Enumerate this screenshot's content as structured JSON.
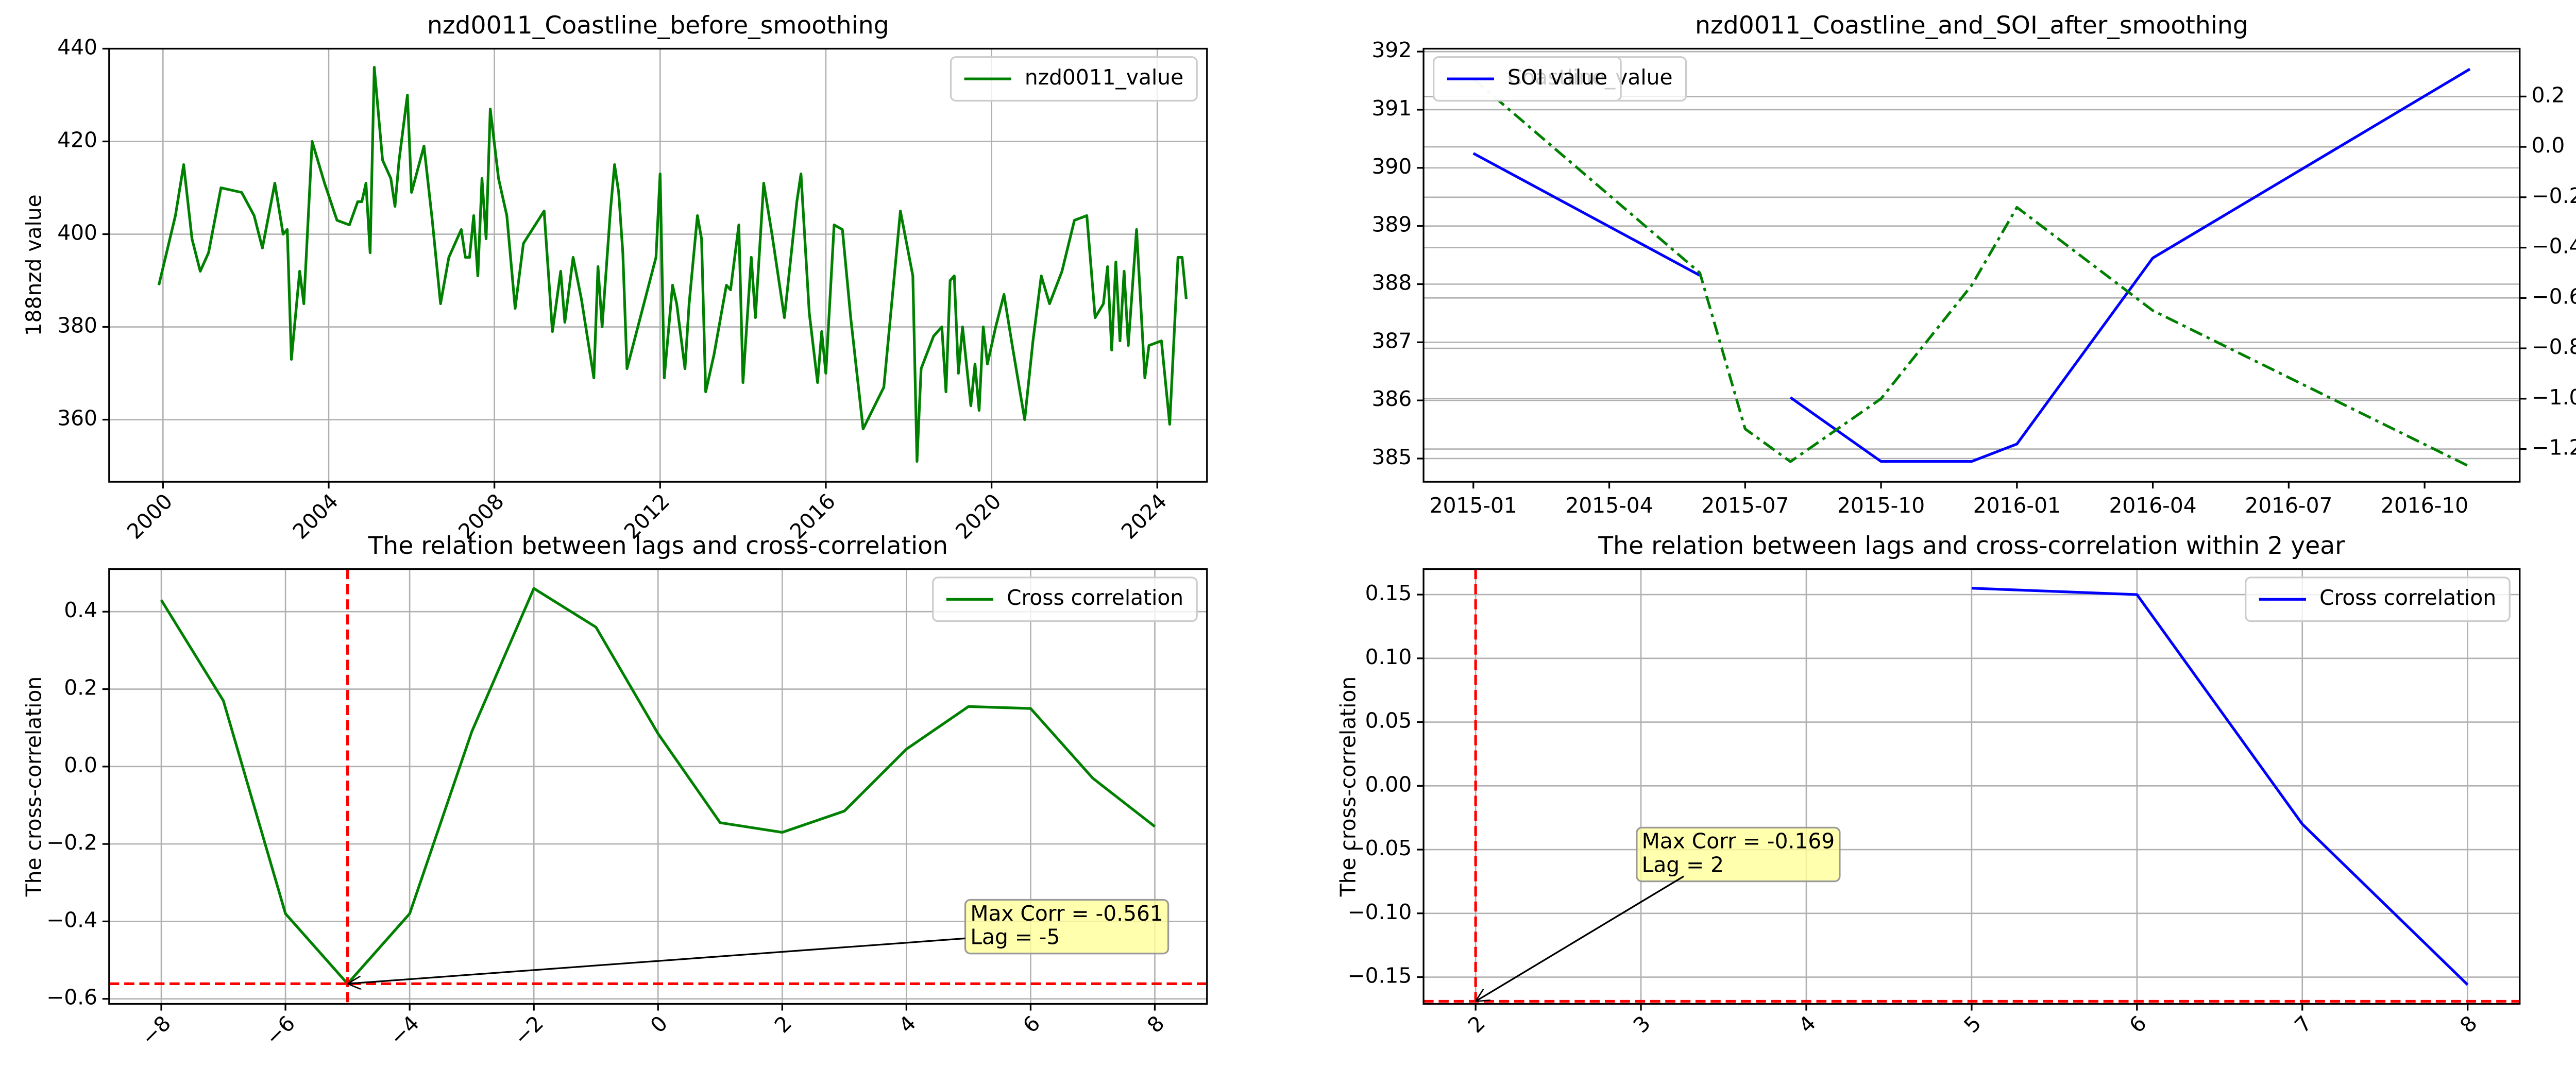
{
  "chart_data": [
    {
      "type": "line",
      "title": "nzd0011_Coastline_before_smoothing",
      "ylabel": "188nzd value",
      "x": [
        1999.9,
        2000.3,
        2000.5,
        2000.7,
        2000.9,
        2001.1,
        2001.4,
        2001.9,
        2002.2,
        2002.4,
        2002.7,
        2002.9,
        2003.0,
        2003.1,
        2003.3,
        2003.4,
        2003.6,
        2003.9,
        2004.2,
        2004.5,
        2004.7,
        2004.8,
        2004.9,
        2005.0,
        2005.1,
        2005.3,
        2005.5,
        2005.6,
        2005.7,
        2005.9,
        2006.0,
        2006.3,
        2006.5,
        2006.7,
        2006.9,
        2007.2,
        2007.3,
        2007.4,
        2007.5,
        2007.6,
        2007.7,
        2007.8,
        2007.9,
        2008.1,
        2008.3,
        2008.5,
        2008.7,
        2009.2,
        2009.4,
        2009.6,
        2009.7,
        2009.9,
        2010.1,
        2010.4,
        2010.5,
        2010.6,
        2010.8,
        2010.9,
        2011.0,
        2011.1,
        2011.2,
        2011.9,
        2012.0,
        2012.1,
        2012.3,
        2012.4,
        2012.6,
        2012.7,
        2012.9,
        2013.0,
        2013.1,
        2013.3,
        2013.6,
        2013.7,
        2013.9,
        2014.0,
        2014.2,
        2014.3,
        2014.5,
        2014.7,
        2015.0,
        2015.3,
        2015.4,
        2015.6,
        2015.8,
        2015.9,
        2016.0,
        2016.2,
        2016.4,
        2016.6,
        2016.9,
        2017.4,
        2017.6,
        2017.8,
        2018.1,
        2018.2,
        2018.3,
        2018.6,
        2018.8,
        2018.9,
        2019.0,
        2019.1,
        2019.2,
        2019.3,
        2019.5,
        2019.6,
        2019.7,
        2019.8,
        2019.9,
        2020.1,
        2020.3,
        2020.5,
        2020.8,
        2021.0,
        2021.2,
        2021.4,
        2021.7,
        2022.0,
        2022.3,
        2022.5,
        2022.7,
        2022.8,
        2022.9,
        2023.0,
        2023.1,
        2023.2,
        2023.3,
        2023.5,
        2023.7,
        2023.8,
        2024.1,
        2024.3,
        2024.5,
        2024.6,
        2024.7
      ],
      "series": [
        {
          "name": "nzd0011_value",
          "color": "#008000",
          "values": [
            389,
            404,
            415,
            399,
            392,
            396,
            410,
            409,
            404,
            397,
            411,
            400,
            401,
            373,
            392,
            385,
            420,
            411,
            403,
            402,
            407,
            407,
            411,
            396,
            436,
            416,
            412,
            406,
            416,
            430,
            409,
            419,
            403,
            385,
            395,
            401,
            395,
            395,
            404,
            391,
            412,
            399,
            427,
            412,
            404,
            384,
            398,
            405,
            379,
            392,
            381,
            395,
            386,
            369,
            393,
            380,
            405,
            415,
            409,
            396,
            371,
            395,
            413,
            369,
            389,
            385,
            371,
            385,
            404,
            399,
            366,
            374,
            389,
            388,
            402,
            368,
            395,
            382,
            411,
            400,
            382,
            407,
            413,
            383,
            368,
            379,
            370,
            402,
            401,
            382,
            358,
            367,
            386,
            405,
            391,
            351,
            371,
            378,
            380,
            366,
            390,
            391,
            370,
            380,
            363,
            372,
            362,
            380,
            372,
            380,
            387,
            376,
            360,
            377,
            391,
            385,
            392,
            403,
            404,
            382,
            385,
            393,
            375,
            394,
            377,
            392,
            376,
            401,
            369,
            376,
            377,
            359,
            395,
            395,
            386
          ]
        }
      ],
      "xlim": [
        1998.7,
        2025.2
      ],
      "xticks": [
        2000,
        2004,
        2008,
        2012,
        2016,
        2020,
        2024
      ],
      "ylim": [
        346.6,
        440
      ],
      "yticks": [
        360,
        380,
        400,
        420,
        440
      ],
      "grid": "both",
      "legend": "upper right"
    },
    {
      "type": "line",
      "title": "nzd0011_Coastline_and_SOI_after_smoothing",
      "y2label": "SOI value",
      "x": [
        "2015-01",
        "2015-06",
        "2015-07",
        "2015-08",
        "2015-10",
        "2015-12",
        "2016-01",
        "2016-04",
        "2016-11"
      ],
      "series": [
        {
          "name": "SOI value",
          "color": "#0000ff",
          "values": [
            390.25,
            388.15,
            null,
            386.05,
            384.95,
            384.95,
            385.25,
            388.45,
            391.7
          ]
        },
        {
          "name": "Coastline_value",
          "color": "#008000",
          "linestyle": "dashdot",
          "axis": "y2",
          "values": [
            0.27,
            -0.5,
            -1.12,
            -1.25,
            -1.0,
            -0.55,
            -0.24,
            -0.65,
            -1.27
          ]
        }
      ],
      "xticks": [
        "2015-01",
        "2015-04",
        "2015-07",
        "2015-10",
        "2016-01",
        "2016-04",
        "2016-07",
        "2016-10"
      ],
      "ylim": [
        384.6,
        392.05
      ],
      "yticks": [
        385,
        386,
        387,
        388,
        389,
        390,
        391,
        392
      ],
      "y2lim": [
        -1.33,
        0.39
      ],
      "y2ticks": [
        {
          "value": 0.2,
          "label": "0.2"
        },
        {
          "value": 0,
          "label": "0.0"
        },
        {
          "value": -0.2,
          "label": "−0.2"
        },
        {
          "value": -0.4,
          "label": "−0.4"
        },
        {
          "value": -0.6,
          "label": "−0.6"
        },
        {
          "value": -0.8,
          "label": "−0.8"
        },
        {
          "value": -1.0,
          "label": "−1.0"
        },
        {
          "value": -1.2,
          "label": "−1.2"
        }
      ],
      "grid": "y",
      "legend": "upper left"
    },
    {
      "type": "line",
      "title": "The relation between lags and cross-correlation",
      "ylabel": "The cross-correlation",
      "x": [
        -8,
        -7,
        -6,
        -5,
        -4,
        -3,
        -2,
        -1,
        0,
        1,
        2,
        3,
        4,
        5,
        6,
        7,
        8
      ],
      "series": [
        {
          "name": "Cross correlation",
          "color": "#008000",
          "values": [
            0.43,
            0.17,
            -0.38,
            -0.561,
            -0.38,
            0.09,
            0.46,
            0.36,
            0.085,
            -0.145,
            -0.17,
            -0.115,
            0.045,
            0.155,
            0.15,
            -0.03,
            -0.155
          ]
        }
      ],
      "xlim": [
        -8.84,
        8.84
      ],
      "xticks": [
        {
          "value": -8,
          "label": "−8"
        },
        {
          "value": -6,
          "label": "−6"
        },
        {
          "value": -4,
          "label": "−4"
        },
        {
          "value": -2,
          "label": "−2"
        },
        0,
        2,
        4,
        6,
        8
      ],
      "ylim": [
        -0.613,
        0.51
      ],
      "yticks": [
        {
          "value": 0.4,
          "label": "0.4"
        },
        {
          "value": 0.2,
          "label": "0.2"
        },
        {
          "value": 0,
          "label": "0.0"
        },
        {
          "value": -0.2,
          "label": "−0.2"
        },
        {
          "value": -0.4,
          "label": "−0.4"
        },
        {
          "value": -0.6,
          "label": "−0.6"
        }
      ],
      "grid": "both",
      "legend": "upper right",
      "annotation": {
        "text": [
          "Max Corr = -0.561",
          "Lag = -5"
        ],
        "x": -5,
        "y": -0.561
      }
    },
    {
      "type": "line",
      "title": "The relation between lags and cross-correlation within 2 year",
      "ylabel": "The cross-correlation",
      "x": [
        5,
        6,
        7,
        8
      ],
      "series": [
        {
          "name": "Cross correlation",
          "color": "#0000ff",
          "values": [
            0.155,
            0.15,
            -0.03,
            -0.156
          ]
        }
      ],
      "xlim": [
        1.685,
        8.315
      ],
      "xticks": [
        2,
        3,
        4,
        5,
        6,
        7,
        8
      ],
      "ylim": [
        -0.171,
        0.17
      ],
      "yticks": [
        {
          "value": 0.15,
          "label": "0.15"
        },
        {
          "value": 0.1,
          "label": "0.10"
        },
        {
          "value": 0.05,
          "label": "0.05"
        },
        {
          "value": 0,
          "label": "0.00"
        },
        {
          "value": -0.05,
          "label": "−0.05"
        },
        {
          "value": -0.1,
          "label": "−0.10"
        },
        {
          "value": -0.15,
          "label": "−0.15"
        }
      ],
      "grid": "both",
      "legend": "upper right",
      "annotation": {
        "text": [
          "Max Corr = -0.169",
          "Lag = 2"
        ],
        "x": 2,
        "y": -0.169
      }
    }
  ]
}
